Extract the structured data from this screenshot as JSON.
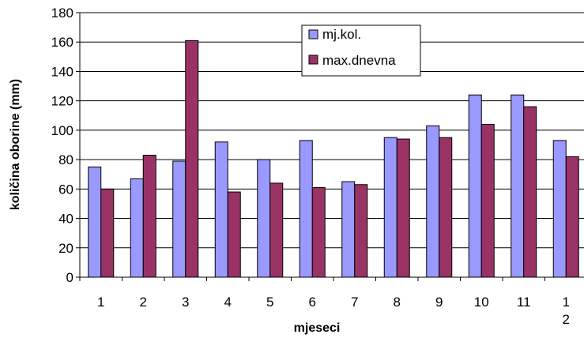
{
  "chart_data": {
    "type": "bar",
    "title": "",
    "xlabel": "mjeseci",
    "ylabel": "količina oborine (mm)",
    "categories": [
      "1",
      "2",
      "3",
      "4",
      "5",
      "6",
      "7",
      "8",
      "9",
      "10",
      "11",
      "1\n2"
    ],
    "series": [
      {
        "name": "mj.kol.",
        "color": "#9999ff",
        "values": [
          75,
          67,
          79,
          92,
          80,
          93,
          65,
          95,
          103,
          124,
          124,
          93
        ]
      },
      {
        "name": "max.dnevna",
        "color": "#993366",
        "values": [
          60,
          83,
          161,
          58,
          64,
          61,
          63,
          94,
          95,
          104,
          116,
          82
        ]
      }
    ],
    "ylim": [
      0,
      180
    ],
    "yticks": [
      0,
      20,
      40,
      60,
      80,
      100,
      120,
      140,
      160,
      180
    ],
    "grid": true,
    "legend_position": "top-right"
  }
}
